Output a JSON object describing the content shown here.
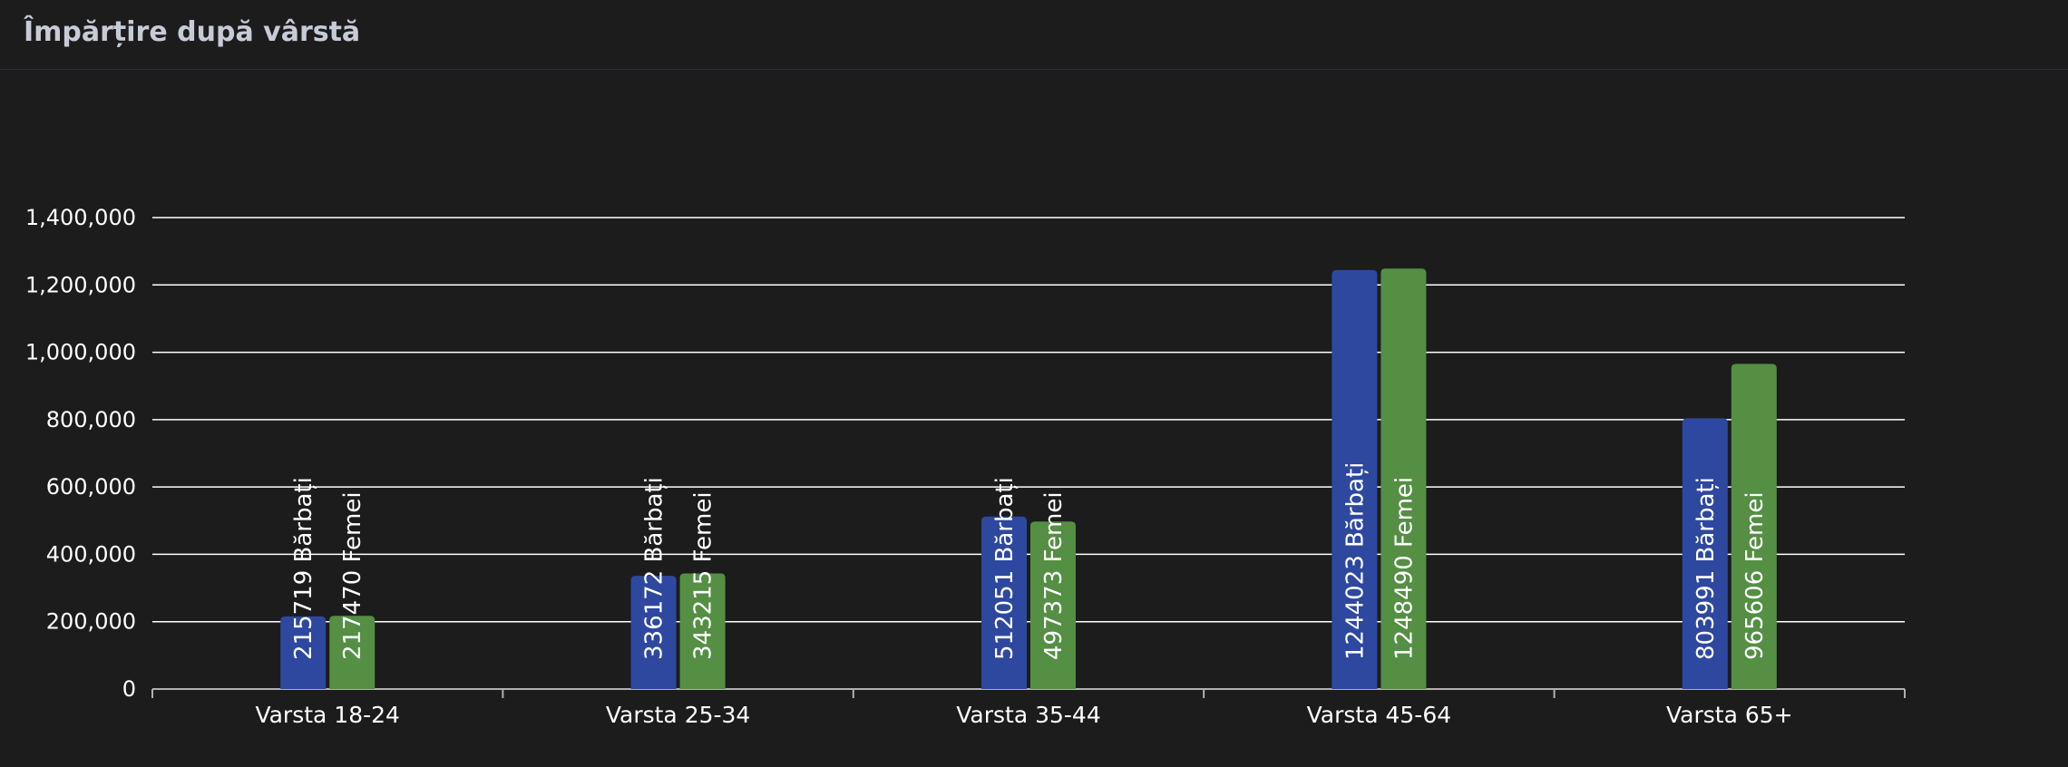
{
  "header": {
    "title": "Împărțire după vârstă"
  },
  "colors": {
    "background": "#1c1c1c",
    "grid": "#ffffff",
    "male": "#2e48a0",
    "female": "#548f44",
    "title": "#c7cbd8"
  },
  "chart_data": {
    "type": "bar",
    "title": "",
    "xlabel": "",
    "ylabel": "",
    "ylim": [
      0,
      1400000
    ],
    "yticks": [
      0,
      200000,
      400000,
      600000,
      800000,
      1000000,
      1200000,
      1400000
    ],
    "ytick_labels": [
      "0",
      "200,000",
      "400,000",
      "600,000",
      "800,000",
      "1,000,000",
      "1,200,000",
      "1,400,000"
    ],
    "grid": true,
    "legend": "none",
    "categories": [
      "Varsta 18-24",
      "Varsta 25-34",
      "Varsta 35-44",
      "Varsta 45-64",
      "Varsta 65+"
    ],
    "series": [
      {
        "name": "Bărbați",
        "values": [
          215719,
          336172,
          512051,
          1244023,
          803991
        ],
        "labels": [
          "215719 Bărbați",
          "336172 Bărbați",
          "512051 Bărbați",
          "1244023 Bărbați",
          "803991 Bărbați"
        ]
      },
      {
        "name": "Femei",
        "values": [
          217470,
          343215,
          497373,
          1248490,
          965606
        ],
        "labels": [
          "217470 Femei",
          "343215 Femei",
          "497373 Femei",
          "1248490 Femei",
          "965606 Femei"
        ]
      }
    ]
  }
}
